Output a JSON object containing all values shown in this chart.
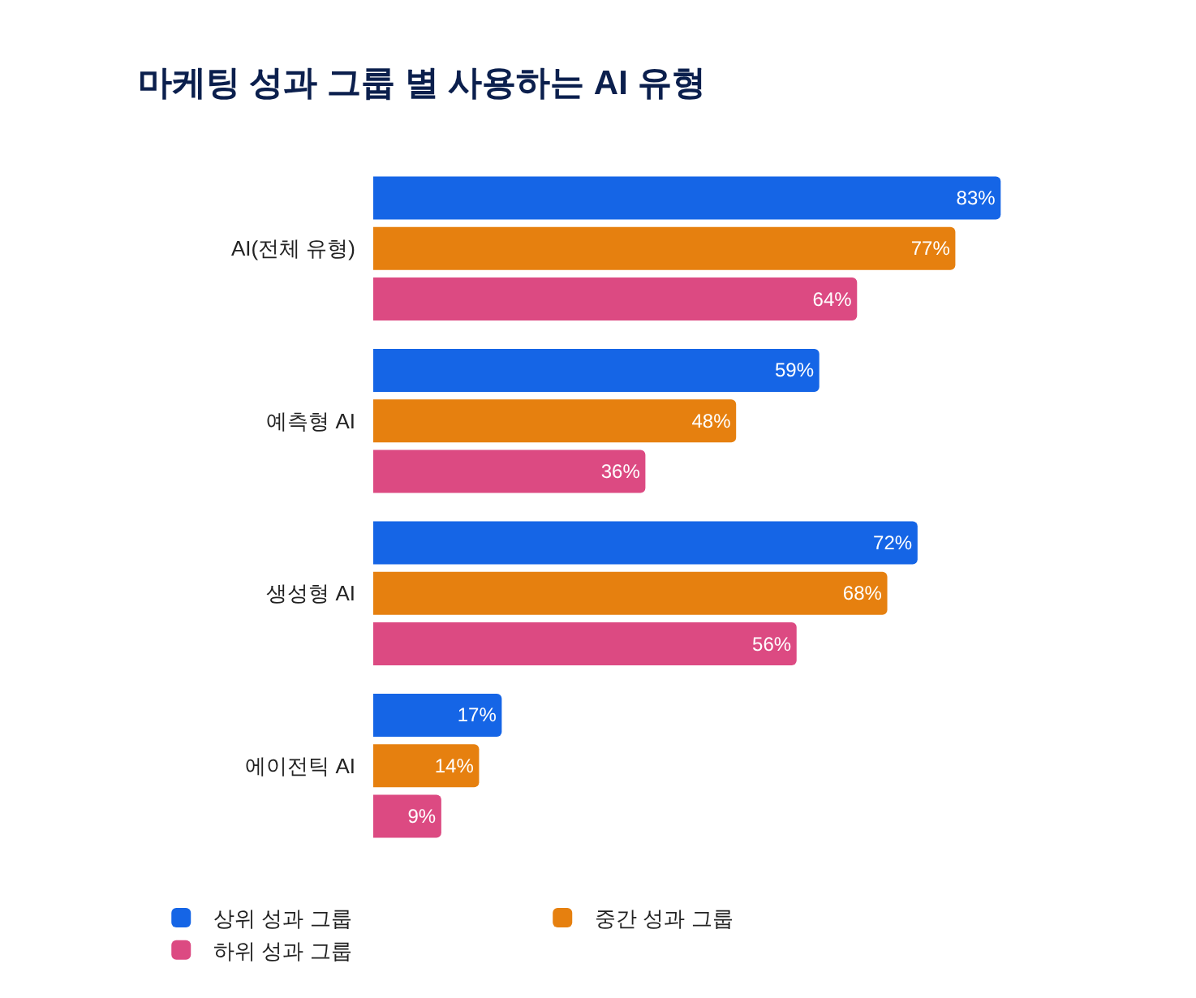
{
  "chart_data": {
    "type": "bar",
    "orientation": "horizontal",
    "title": "마케팅 성과 그룹 별 사용하는 AI 유형",
    "categories": [
      "AI(전체 유형)",
      "예측형 AI",
      "생성형 AI",
      "에이전틱 AI"
    ],
    "series": [
      {
        "name": "상위 성과 그룹",
        "color": "#1565e6",
        "values": [
          83,
          59,
          72,
          17
        ],
        "value_labels": [
          "83%",
          "59%",
          "72%",
          "17%"
        ]
      },
      {
        "name": "중간 성과 그룹",
        "color": "#e6800f",
        "values": [
          77,
          48,
          68,
          14
        ],
        "value_labels": [
          "77%",
          "48%",
          "68%",
          "14%"
        ]
      },
      {
        "name": "하위 성과 그룹",
        "color": "#dc4a82",
        "values": [
          64,
          36,
          56,
          9
        ],
        "value_labels": [
          "64%",
          "36%",
          "56%",
          "9%"
        ]
      }
    ],
    "tick_labels": "y",
    "legend": "bottom"
  }
}
